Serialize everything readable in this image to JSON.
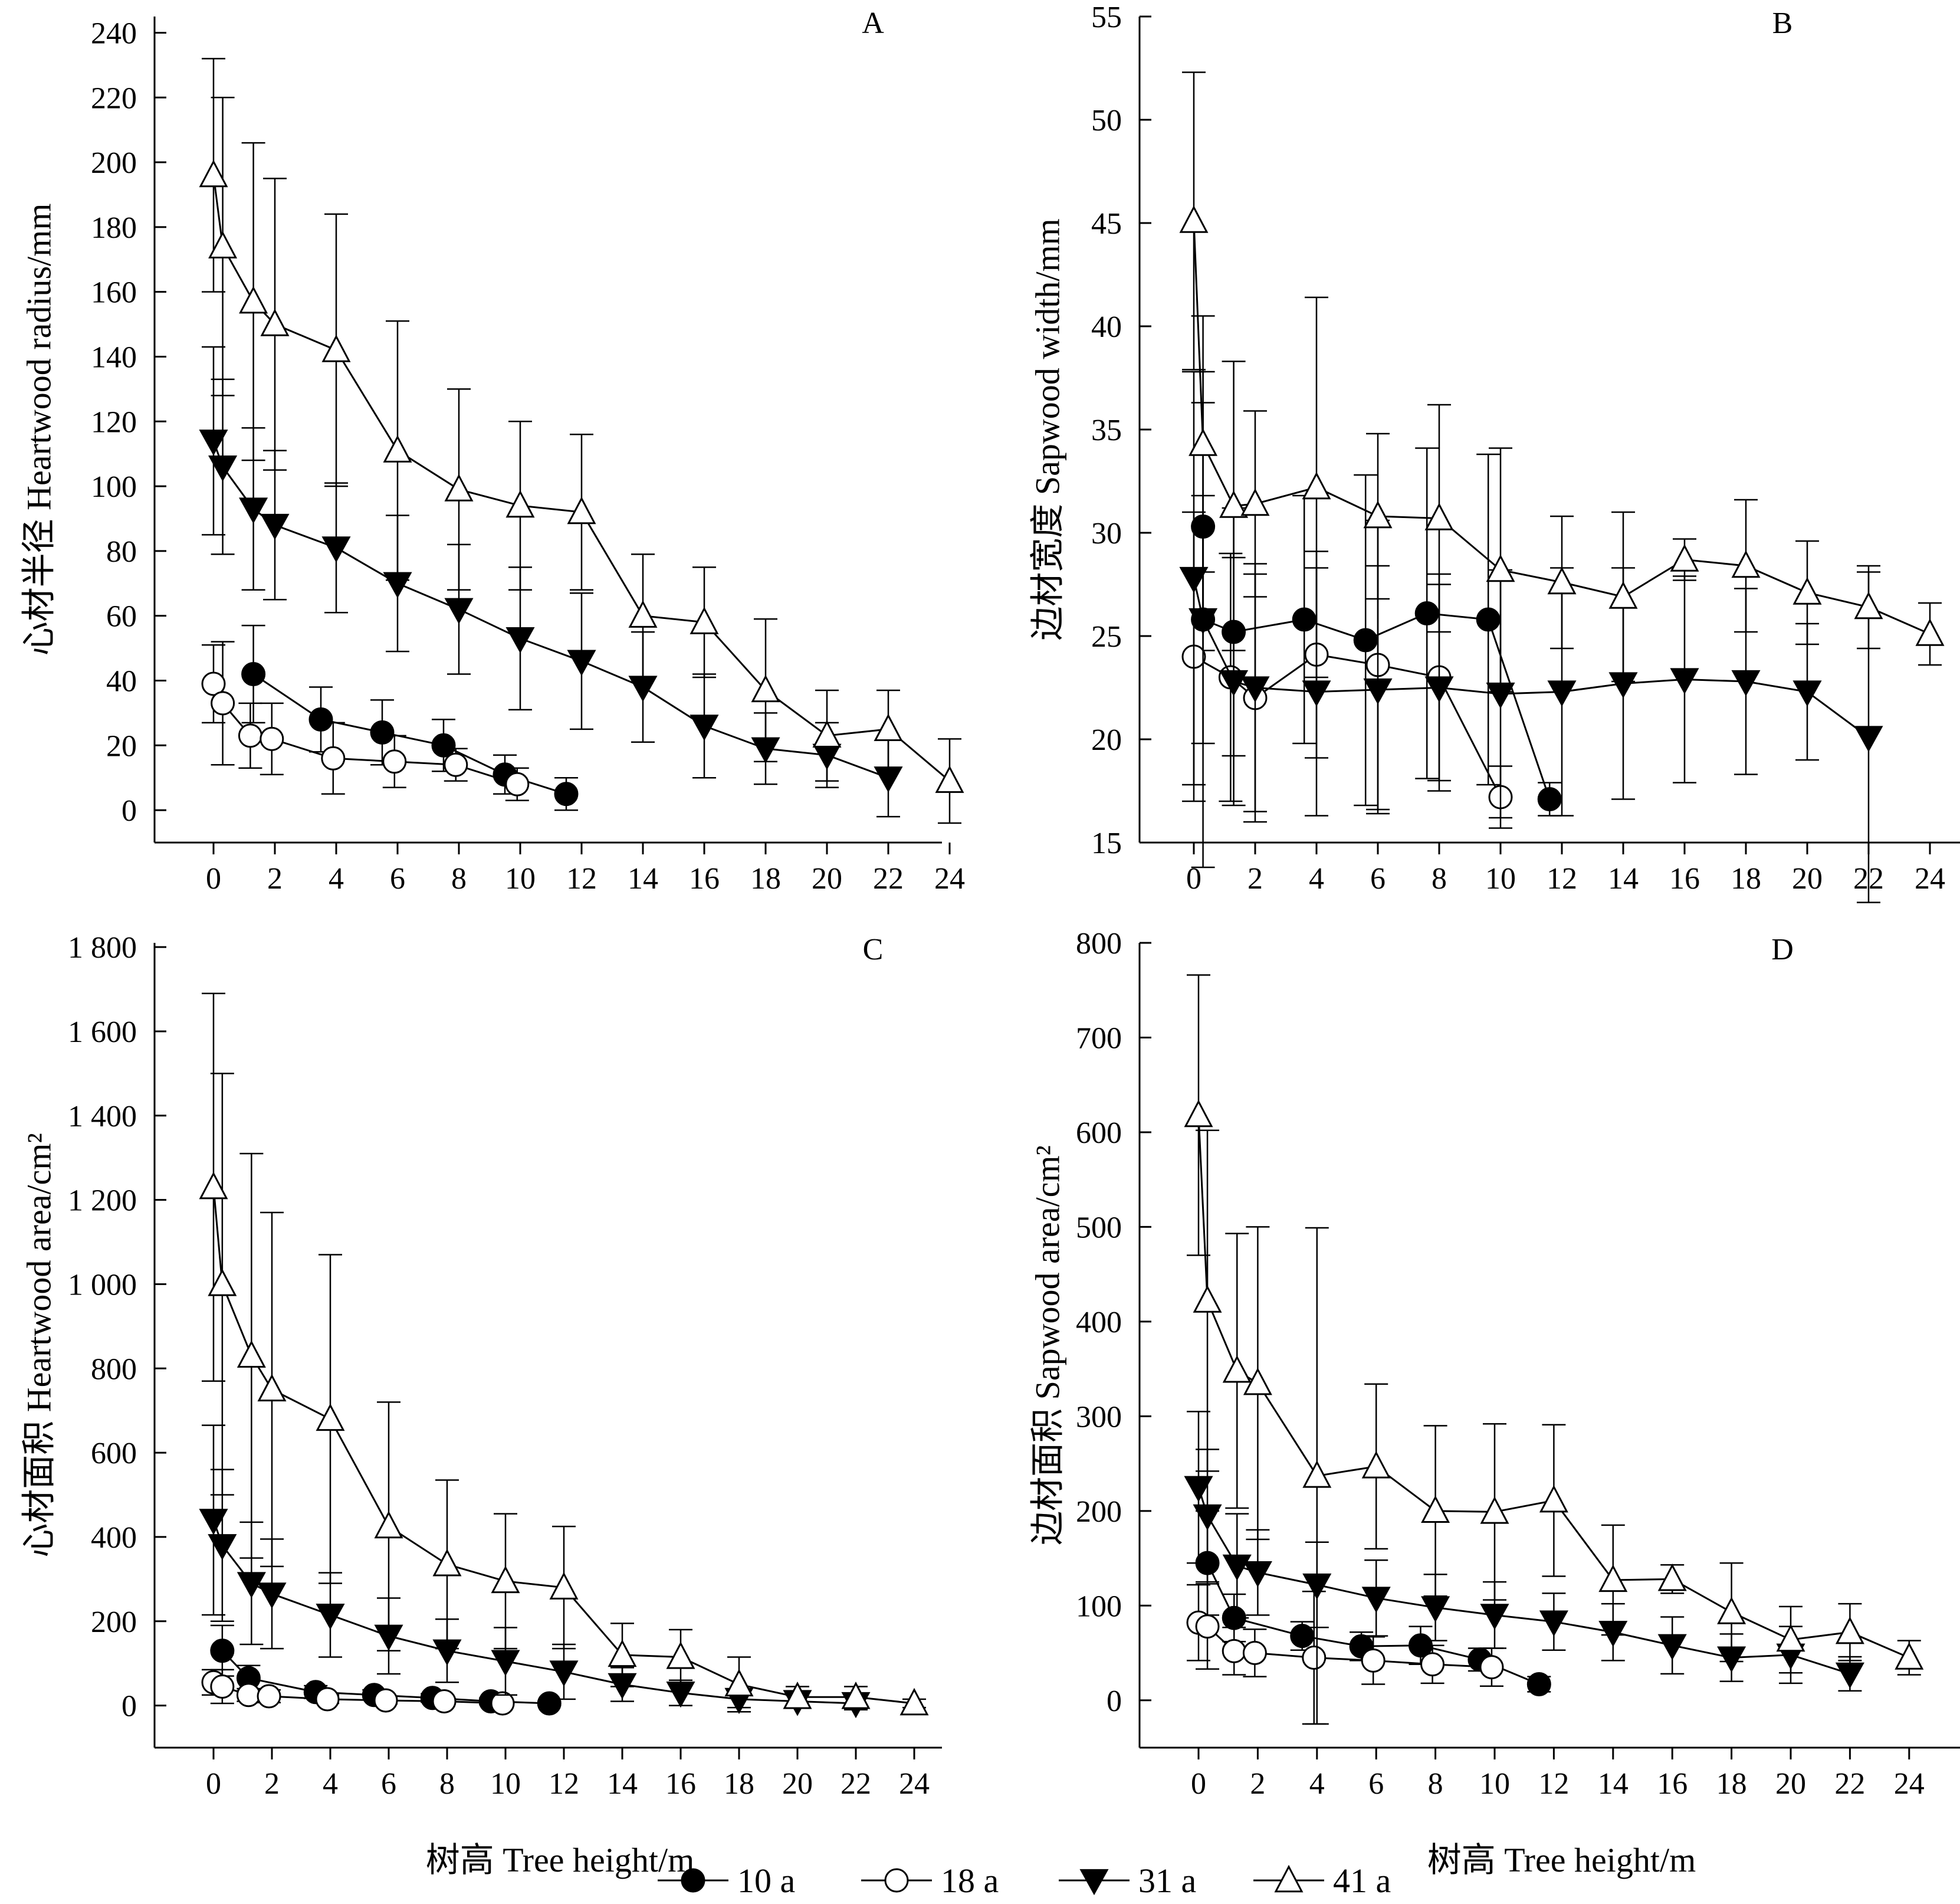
{
  "legend": {
    "placement": "bottom-center",
    "entries": [
      {
        "name": "10 a",
        "marker": "filled-circle"
      },
      {
        "name": "18 a",
        "marker": "open-circle"
      },
      {
        "name": "31 a",
        "marker": "filled-triangle-down"
      },
      {
        "name": "41 a",
        "marker": "open-triangle-up"
      }
    ]
  },
  "colors": {
    "ink": "#000000",
    "background": "#ffffff"
  },
  "chart_data": [
    {
      "id": "A",
      "type": "line",
      "panel_label": "A",
      "ylabel": "心材半径 Heartwood radius/mm",
      "xlabel": "",
      "xlim": [
        -2,
        25
      ],
      "ylim": [
        -10,
        245
      ],
      "xticks": [
        0,
        2,
        4,
        6,
        8,
        10,
        12,
        14,
        16,
        18,
        20,
        22,
        24
      ],
      "xtick_labels": [
        "0",
        "2",
        "4",
        "6",
        "8",
        "10",
        "12",
        "14",
        "16",
        "18",
        "20",
        "22",
        "24"
      ],
      "yticks": [
        0,
        20,
        40,
        60,
        80,
        100,
        120,
        140,
        160,
        180,
        200,
        220,
        240
      ],
      "ytick_labels": [
        "0",
        "20",
        "40",
        "60",
        "80",
        "100",
        "120",
        "140",
        "160",
        "180",
        "200",
        "220",
        "240"
      ],
      "series": [
        {
          "name": "10 a",
          "marker": "filled-circle",
          "x": [
            1.3,
            3.5,
            5.5,
            7.5,
            9.5,
            11.5
          ],
          "y": [
            42,
            28,
            24,
            20,
            11,
            5
          ],
          "err": [
            15,
            10,
            10,
            8,
            6,
            5
          ]
        },
        {
          "name": "18 a",
          "marker": "open-circle",
          "x": [
            0,
            0.3,
            1.2,
            1.9,
            3.9,
            5.9,
            7.9,
            9.9
          ],
          "y": [
            39,
            33,
            23,
            22,
            16,
            15,
            14,
            8
          ],
          "err": [
            12,
            19,
            10,
            11,
            11,
            8,
            5,
            5
          ]
        },
        {
          "name": "31 a",
          "marker": "filled-triangle-down",
          "x": [
            0,
            0.3,
            1.3,
            2,
            4,
            6,
            8,
            10,
            12,
            14,
            16,
            18,
            20,
            22
          ],
          "y": [
            114,
            106,
            93,
            88,
            81,
            70,
            62,
            53,
            46,
            38,
            26,
            19,
            17,
            10
          ],
          "err": [
            29,
            27,
            25,
            23,
            20,
            21,
            20,
            22,
            21,
            17,
            16,
            11,
            10,
            12
          ]
        },
        {
          "name": "41 a",
          "marker": "open-triangle-up",
          "x": [
            0,
            0.3,
            1.3,
            2,
            4,
            6,
            8,
            10,
            12,
            14,
            16,
            18,
            20,
            22,
            24
          ],
          "y": [
            196,
            174,
            157,
            150,
            142,
            111,
            99,
            94,
            92,
            60,
            58,
            37,
            23,
            25,
            9
          ],
          "err": [
            36,
            46,
            49,
            45,
            42,
            40,
            31,
            26,
            24,
            19,
            17,
            22,
            14,
            12,
            13
          ]
        }
      ]
    },
    {
      "id": "B",
      "type": "line",
      "panel_label": "B",
      "ylabel": "边材宽度 Sapwood width/mm",
      "xlabel": "",
      "xlim": [
        -2,
        25
      ],
      "ylim": [
        15,
        55
      ],
      "xticks": [
        0,
        2,
        4,
        6,
        8,
        10,
        12,
        14,
        16,
        18,
        20,
        22,
        24
      ],
      "xtick_labels": [
        "0",
        "2",
        "4",
        "6",
        "8",
        "10",
        "12",
        "14",
        "16",
        "18",
        "20",
        "22",
        "24"
      ],
      "yticks": [
        15,
        20,
        25,
        30,
        35,
        40,
        45,
        50,
        55
      ],
      "ytick_labels": [
        "15",
        "20",
        "25",
        "30",
        "35",
        "40",
        "45",
        "50",
        "55"
      ],
      "series": [
        {
          "name": "10 a",
          "marker": "filled-circle",
          "x": [
            0.3,
            0.3,
            1.3,
            3.6,
            5.6,
            7.6,
            9.6,
            11.6
          ],
          "y": [
            30.3,
            25.8,
            25.2,
            25.8,
            24.8,
            26.1,
            25.8,
            17.1
          ],
          "err": [
            6,
            6,
            6,
            6,
            8,
            8,
            8,
            0.8
          ]
        },
        {
          "name": "18 a",
          "marker": "open-circle",
          "x": [
            0,
            1.2,
            2,
            4,
            6,
            8,
            10
          ],
          "y": [
            24.0,
            23.0,
            22.0,
            24.1,
            23.6,
            23.0,
            17.2
          ],
          "err": [
            7,
            6,
            6,
            5,
            7,
            5,
            1.5
          ]
        },
        {
          "name": "31 a",
          "marker": "filled-triangle-down",
          "x": [
            0,
            0.3,
            1.3,
            2,
            4,
            6,
            8,
            10,
            12,
            14,
            16,
            18,
            20,
            22
          ],
          "y": [
            27.8,
            25.8,
            22.8,
            22.5,
            22.3,
            22.4,
            22.5,
            22.2,
            22.3,
            22.7,
            22.9,
            22.8,
            22.3,
            20.1
          ],
          "err": [
            10,
            12,
            6,
            6,
            6,
            6,
            5,
            6,
            6,
            5.6,
            5,
            4.5,
            3.3,
            8
          ]
        },
        {
          "name": "41 a",
          "marker": "open-triangle-up",
          "x": [
            0,
            0.3,
            1.3,
            2,
            4,
            6,
            8,
            10,
            12,
            14,
            16,
            18,
            20,
            22,
            24
          ],
          "y": [
            45.1,
            34.3,
            31.3,
            31.4,
            32.2,
            30.8,
            30.7,
            28.2,
            27.6,
            26.9,
            28.7,
            28.4,
            27.1,
            26.4,
            25.1
          ],
          "err": [
            7.2,
            6.2,
            7,
            4.5,
            9.2,
            4,
            5.5,
            5.9,
            3.2,
            4.1,
            1,
            3.2,
            2.5,
            2,
            1.5
          ]
        }
      ]
    },
    {
      "id": "C",
      "type": "line",
      "panel_label": "C",
      "ylabel": "心材面积 Heartwood area/cm²",
      "xlabel": "树高  Tree height/m",
      "xlim": [
        -2,
        25
      ],
      "ylim": [
        -100,
        1810
      ],
      "xticks": [
        0,
        2,
        4,
        6,
        8,
        10,
        12,
        14,
        16,
        18,
        20,
        22,
        24
      ],
      "xtick_labels": [
        "0",
        "2",
        "4",
        "6",
        "8",
        "10",
        "12",
        "14",
        "16",
        "18",
        "20",
        "22",
        "24"
      ],
      "yticks": [
        0,
        200,
        400,
        600,
        800,
        1000,
        1200,
        1400,
        1600,
        1800
      ],
      "ytick_labels": [
        "0",
        "200",
        "400",
        "600",
        "800",
        "1 000",
        "1 200",
        "1 400",
        "1 600",
        "1 800"
      ],
      "series": [
        {
          "name": "10 a",
          "marker": "filled-circle",
          "x": [
            0.3,
            1.2,
            3.5,
            5.5,
            7.5,
            9.5,
            11.5
          ],
          "y": [
            130,
            65,
            32,
            25,
            18,
            10,
            5
          ],
          "err": [
            60,
            30,
            15,
            12,
            10,
            8,
            5
          ]
        },
        {
          "name": "18 a",
          "marker": "open-circle",
          "x": [
            0,
            0.3,
            1.2,
            1.9,
            3.9,
            5.9,
            7.9,
            9.9
          ],
          "y": [
            55,
            45,
            25,
            22,
            15,
            12,
            10,
            5
          ],
          "err": [
            30,
            40,
            15,
            15,
            10,
            8,
            6,
            5
          ]
        },
        {
          "name": "31 a",
          "marker": "filled-triangle-down",
          "x": [
            0,
            0.3,
            1.3,
            2,
            4,
            6,
            8,
            10,
            12,
            14,
            16,
            18,
            20,
            22
          ],
          "y": [
            440,
            380,
            290,
            265,
            215,
            165,
            130,
            105,
            80,
            50,
            30,
            15,
            10,
            5
          ],
          "err": [
            225,
            180,
            145,
            130,
            100,
            90,
            75,
            80,
            65,
            40,
            30,
            20,
            15,
            15
          ]
        },
        {
          "name": "41 a",
          "marker": "open-triangle-up",
          "x": [
            0,
            0.3,
            1.3,
            2,
            4,
            6,
            8,
            10,
            12,
            14,
            16,
            18,
            20,
            22,
            24
          ],
          "y": [
            1230,
            1000,
            830,
            750,
            680,
            425,
            335,
            295,
            280,
            120,
            115,
            50,
            20,
            20,
            5
          ],
          "err": [
            460,
            500,
            480,
            420,
            390,
            295,
            200,
            160,
            145,
            75,
            65,
            65,
            25,
            25,
            10
          ]
        }
      ]
    },
    {
      "id": "D",
      "type": "line",
      "panel_label": "D",
      "ylabel": "边材面积 Sapwood area/cm²",
      "xlabel": "树高  Tree height/m",
      "xlim": [
        -2,
        25
      ],
      "ylim": [
        -50,
        800
      ],
      "xticks": [
        0,
        2,
        4,
        6,
        8,
        10,
        12,
        14,
        16,
        18,
        20,
        22,
        24
      ],
      "xtick_labels": [
        "0",
        "2",
        "4",
        "6",
        "8",
        "10",
        "12",
        "14",
        "16",
        "18",
        "20",
        "22",
        "24"
      ],
      "yticks": [
        0,
        100,
        200,
        300,
        400,
        500,
        600,
        700,
        800
      ],
      "ytick_labels": [
        "0",
        "100",
        "200",
        "300",
        "400",
        "500",
        "600",
        "700",
        "800"
      ],
      "series": [
        {
          "name": "10 a",
          "marker": "filled-circle",
          "x": [
            0.3,
            1.2,
            3.5,
            5.5,
            7.5,
            9.5,
            11.5
          ],
          "y": [
            145,
            87,
            68,
            57,
            58,
            43,
            17
          ],
          "err": [
            55,
            25,
            15,
            15,
            20,
            12,
            8
          ]
        },
        {
          "name": "18 a",
          "marker": "open-circle",
          "x": [
            0,
            0.3,
            1.2,
            1.9,
            3.9,
            5.9,
            7.9,
            9.9
          ],
          "y": [
            82,
            78,
            52,
            50,
            45,
            42,
            38,
            35
          ],
          "err": [
            40,
            45,
            25,
            25,
            70,
            25,
            20,
            20
          ]
        },
        {
          "name": "31 a",
          "marker": "filled-triangle-down",
          "x": [
            0,
            0.3,
            1.3,
            2,
            4,
            6,
            8,
            10,
            12,
            14,
            16,
            18,
            20,
            22
          ],
          "y": [
            225,
            195,
            142,
            135,
            122,
            108,
            98,
            90,
            83,
            72,
            58,
            45,
            48,
            28
          ],
          "err": [
            80,
            70,
            55,
            45,
            45,
            40,
            35,
            35,
            30,
            30,
            30,
            25,
            30,
            18
          ]
        },
        {
          "name": "41 a",
          "marker": "open-triangle-up",
          "x": [
            0,
            0.3,
            1.3,
            2,
            4,
            6,
            8,
            10,
            12,
            14,
            16,
            18,
            20,
            22,
            24
          ],
          "y": [
            618,
            422,
            348,
            335,
            237,
            247,
            200,
            199,
            211,
            127,
            128,
            93,
            64,
            72,
            45
          ],
          "err": [
            148,
            180,
            145,
            165,
            262,
            87,
            90,
            93,
            80,
            58,
            15,
            52,
            35,
            30,
            18
          ]
        }
      ]
    }
  ]
}
